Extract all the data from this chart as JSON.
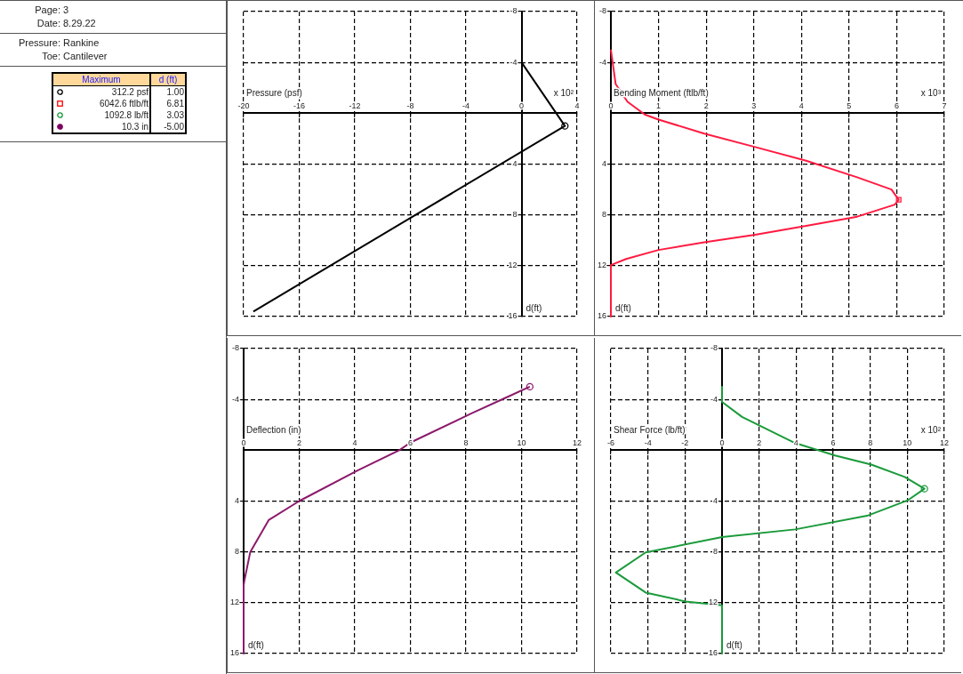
{
  "chart_data": [
    {
      "type": "other",
      "annotations": [
        "Page: 3",
        "Date: 8.29.22",
        "Pressure: Rankine",
        "Toe: Cantilever",
        "Maximum",
        "d (ft)",
        "312.2 psf",
        "1.00",
        "6042.6 ftlb/ft",
        "6.81",
        "1092.8 lb/ft",
        "3.03",
        "10.3 in",
        "-5.00"
      ],
      "colors": [
        "#000000",
        "#ff0000",
        "#1a9a3a",
        "#800060"
      ]
    },
    {
      "type": "line",
      "xlabel": "Pressure (psf)",
      "ylabel": "d(ft)",
      "annotations": [
        "x 10²"
      ],
      "grid": true,
      "xlim": [
        -20,
        4
      ],
      "xticks": [
        -20,
        -16,
        -12,
        -8,
        -4,
        0,
        4
      ],
      "ylim": [
        16,
        -8
      ],
      "yticks": [
        -8,
        -4,
        4,
        8,
        12,
        16
      ],
      "series": [
        {
          "color": "#000000",
          "x": [
            0,
            3.122,
            -19.3
          ],
          "values": [
            -4,
            1.0,
            15.6
          ]
        },
        {
          "type": "scatter",
          "marker": "circle",
          "color": "#000000",
          "x": [
            3.122
          ],
          "values": [
            1.0
          ]
        }
      ]
    },
    {
      "type": "line",
      "xlabel": "Bending Moment (ftlb/ft)",
      "ylabel": "d(ft)",
      "annotations": [
        "x 10³"
      ],
      "grid": true,
      "xlim": [
        0,
        7
      ],
      "xticks": [
        0,
        1,
        2,
        3,
        4,
        5,
        6,
        7
      ],
      "ylim": [
        16,
        -8
      ],
      "yticks": [
        -8,
        -4,
        4,
        8,
        12,
        16
      ],
      "series": [
        {
          "color": "#ff1a40",
          "x": [
            0,
            0.1,
            0.35,
            0.71,
            1.0,
            1.96,
            3.03,
            4.1,
            5.17,
            5.89,
            6.0426,
            5.96,
            5.17,
            4.1,
            3.03,
            1.96,
            1.0,
            0.32,
            0,
            0
          ],
          "values": [
            -5,
            -2.3,
            -0.9,
            0.1,
            0.5,
            1.6,
            2.66,
            3.74,
            5.04,
            6.0,
            6.81,
            7.19,
            8.14,
            8.86,
            9.57,
            10.16,
            10.76,
            11.47,
            11.95,
            16
          ]
        },
        {
          "type": "scatter",
          "marker": "square",
          "color": "#ff1a40",
          "x": [
            6.0426
          ],
          "values": [
            6.81
          ]
        }
      ]
    },
    {
      "type": "line",
      "xlabel": "Deflection (in)",
      "ylabel": "d(ft)",
      "grid": true,
      "xlim": [
        0,
        12
      ],
      "xticks": [
        0,
        2,
        4,
        6,
        8,
        10,
        12
      ],
      "ylim": [
        16,
        -8
      ],
      "yticks": [
        -8,
        -4,
        4,
        8,
        12,
        16
      ],
      "series": [
        {
          "color": "#8b1a6b",
          "x": [
            10.3,
            9.4,
            8.2,
            6.0,
            5.6,
            4.1,
            2.0,
            0.9,
            0.24,
            0.04,
            0,
            0
          ],
          "values": [
            -5,
            -4.1,
            -2.9,
            -0.6,
            0,
            1.6,
            4.0,
            5.5,
            8.0,
            10.1,
            10.6,
            16
          ]
        },
        {
          "type": "scatter",
          "marker": "circle",
          "color": "#8b1a6b",
          "x": [
            10.3
          ],
          "values": [
            -5
          ]
        }
      ]
    },
    {
      "type": "line",
      "xlabel": "Shear Force (lb/ft)",
      "ylabel": "d(ft)",
      "annotations": [
        "x 10²"
      ],
      "grid": true,
      "xlim": [
        -6,
        12
      ],
      "xticks": [
        -6,
        -4,
        -2,
        0,
        2,
        4,
        6,
        8,
        10,
        12
      ],
      "ylim": [
        16,
        -8
      ],
      "yticks": [
        -8,
        -4,
        4,
        8,
        12,
        16
      ],
      "series": [
        {
          "color": "#1a9a3a",
          "x": [
            0,
            0,
            1.08,
            3.95,
            6.1,
            8.06,
            9.86,
            10.928,
            10.04,
            7.89,
            3.95,
            0,
            -4.12,
            -5.73,
            -4.12,
            -1.97,
            0,
            0
          ],
          "values": [
            -5,
            -3.8,
            -2.62,
            -0.56,
            0.41,
            1.13,
            2.1,
            3.03,
            3.93,
            5.13,
            6.23,
            6.84,
            8.04,
            9.62,
            11.2,
            11.9,
            12.2,
            16
          ]
        },
        {
          "type": "scatter",
          "marker": "circle",
          "color": "#1a9a3a",
          "x": [
            10.928
          ],
          "values": [
            3.03
          ]
        }
      ]
    }
  ]
}
